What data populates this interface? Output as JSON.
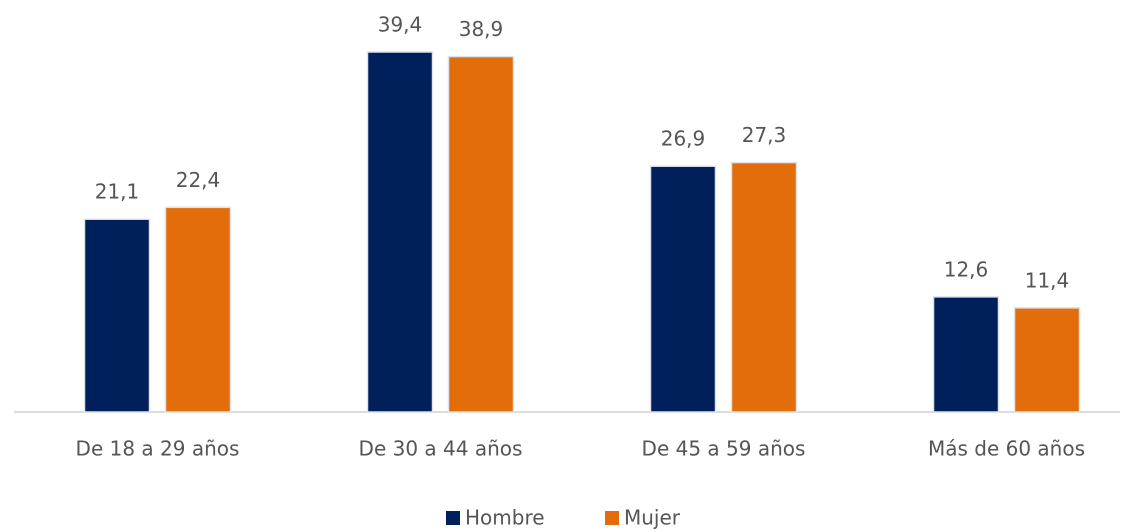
{
  "chart_data": {
    "type": "bar",
    "categories": [
      "De 18 a 29 años",
      "De 30 a 44 años",
      "De 45 a 59 años",
      "Más de 60 años"
    ],
    "series": [
      {
        "name": "Hombre",
        "color": "#00205b",
        "values": [
          21.1,
          39.4,
          26.9,
          12.6
        ],
        "value_labels": [
          "21,1",
          "39,4",
          "26,9",
          "12,6"
        ]
      },
      {
        "name": "Mujer",
        "color": "#e26d0a",
        "values": [
          22.4,
          38.9,
          27.3,
          11.4
        ],
        "value_labels": [
          "22,4",
          "38,9",
          "27,3",
          "11,4"
        ]
      }
    ],
    "legend": "bottom"
  }
}
